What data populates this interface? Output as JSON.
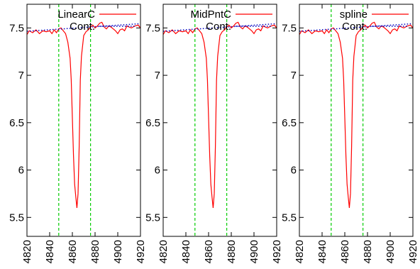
{
  "chart_data": [
    {
      "type": "line",
      "xlim": [
        4820,
        4920
      ],
      "ylim": [
        5.3,
        7.75
      ],
      "xticks": [
        "4820",
        "4840",
        "4860",
        "4880",
        "4900",
        "4920"
      ],
      "yticks": [
        "5.5",
        "6",
        "6.5",
        "7",
        "7.5"
      ],
      "grid": false,
      "legend_position": "top-right",
      "vlines": [
        4848,
        4876
      ],
      "series": [
        {
          "name": "LinearC",
          "color": "#ff0000",
          "style": "solid",
          "x": [
            4820,
            4822,
            4825,
            4828,
            4831,
            4834,
            4837,
            4840,
            4842,
            4844,
            4846,
            4848,
            4850,
            4852,
            4854,
            4856,
            4858,
            4859,
            4860,
            4861,
            4862,
            4863,
            4864,
            4865,
            4866,
            4867,
            4868,
            4870,
            4872,
            4874,
            4876,
            4878,
            4880,
            4882,
            4884,
            4886,
            4888,
            4890,
            4892,
            4894,
            4896,
            4898,
            4900,
            4902,
            4904,
            4906,
            4908,
            4910,
            4912,
            4915,
            4918,
            4920
          ],
          "values": [
            7.43,
            7.47,
            7.45,
            7.48,
            7.44,
            7.47,
            7.46,
            7.47,
            7.44,
            7.48,
            7.45,
            7.49,
            7.5,
            7.47,
            7.44,
            7.35,
            7.18,
            6.95,
            6.55,
            6.15,
            5.85,
            5.72,
            5.6,
            5.75,
            6.25,
            6.95,
            7.2,
            7.42,
            7.46,
            7.48,
            7.51,
            7.53,
            7.5,
            7.52,
            7.55,
            7.56,
            7.51,
            7.49,
            7.52,
            7.51,
            7.49,
            7.47,
            7.44,
            7.48,
            7.49,
            7.47,
            7.52,
            7.51,
            7.5,
            7.52,
            7.53,
            7.5
          ]
        },
        {
          "name": "Cont.",
          "color": "#0000c0",
          "style": "dotted",
          "x": [
            4820,
            4920
          ],
          "values": [
            7.465,
            7.545
          ]
        }
      ]
    },
    {
      "type": "line",
      "xlim": [
        4820,
        4920
      ],
      "ylim": [
        5.3,
        7.75
      ],
      "xticks": [
        "4820",
        "4840",
        "4860",
        "4880",
        "4900",
        "4920"
      ],
      "yticks": [
        "5.5",
        "6",
        "6.5",
        "7",
        "7.5"
      ],
      "grid": false,
      "legend_position": "top-right",
      "vlines": [
        4848,
        4876
      ],
      "series": [
        {
          "name": "MidPntC",
          "color": "#ff0000",
          "style": "solid",
          "x": [
            4820,
            4822,
            4825,
            4828,
            4831,
            4834,
            4837,
            4840,
            4842,
            4844,
            4846,
            4848,
            4850,
            4852,
            4854,
            4856,
            4858,
            4859,
            4860,
            4861,
            4862,
            4863,
            4864,
            4865,
            4866,
            4867,
            4868,
            4870,
            4872,
            4874,
            4876,
            4878,
            4880,
            4882,
            4884,
            4886,
            4888,
            4890,
            4892,
            4894,
            4896,
            4898,
            4900,
            4902,
            4904,
            4906,
            4908,
            4910,
            4912,
            4915,
            4918,
            4920
          ],
          "values": [
            7.43,
            7.47,
            7.45,
            7.48,
            7.44,
            7.47,
            7.46,
            7.47,
            7.44,
            7.48,
            7.45,
            7.49,
            7.5,
            7.47,
            7.44,
            7.35,
            7.18,
            6.95,
            6.55,
            6.15,
            5.85,
            5.72,
            5.6,
            5.75,
            6.25,
            6.95,
            7.2,
            7.42,
            7.46,
            7.48,
            7.51,
            7.53,
            7.5,
            7.52,
            7.55,
            7.56,
            7.51,
            7.49,
            7.52,
            7.51,
            7.49,
            7.47,
            7.44,
            7.48,
            7.49,
            7.47,
            7.52,
            7.51,
            7.5,
            7.52,
            7.53,
            7.5
          ]
        },
        {
          "name": "Cont.",
          "color": "#0000c0",
          "style": "dotted",
          "x": [
            4820,
            4920
          ],
          "values": [
            7.465,
            7.545
          ]
        }
      ]
    },
    {
      "type": "line",
      "xlim": [
        4820,
        4920
      ],
      "ylim": [
        5.3,
        7.75
      ],
      "xticks": [
        "4820",
        "4840",
        "4860",
        "4880",
        "4900",
        "4920"
      ],
      "yticks": [
        "5.5",
        "6",
        "6.5",
        "7",
        "7.5"
      ],
      "grid": false,
      "legend_position": "top-right",
      "vlines": [
        4848,
        4876
      ],
      "series": [
        {
          "name": "spline",
          "color": "#ff0000",
          "style": "solid",
          "x": [
            4820,
            4822,
            4825,
            4828,
            4831,
            4834,
            4837,
            4840,
            4842,
            4844,
            4846,
            4848,
            4850,
            4852,
            4854,
            4856,
            4858,
            4859,
            4860,
            4861,
            4862,
            4863,
            4864,
            4865,
            4866,
            4867,
            4868,
            4870,
            4872,
            4874,
            4876,
            4878,
            4880,
            4882,
            4884,
            4886,
            4888,
            4890,
            4892,
            4894,
            4896,
            4898,
            4900,
            4902,
            4904,
            4906,
            4908,
            4910,
            4912,
            4915,
            4918,
            4920
          ],
          "values": [
            7.43,
            7.47,
            7.45,
            7.48,
            7.44,
            7.47,
            7.46,
            7.47,
            7.44,
            7.48,
            7.45,
            7.49,
            7.5,
            7.47,
            7.44,
            7.35,
            7.18,
            6.95,
            6.55,
            6.15,
            5.85,
            5.72,
            5.6,
            5.75,
            6.25,
            6.95,
            7.2,
            7.42,
            7.46,
            7.48,
            7.51,
            7.53,
            7.5,
            7.52,
            7.55,
            7.56,
            7.51,
            7.49,
            7.52,
            7.51,
            7.49,
            7.47,
            7.44,
            7.48,
            7.49,
            7.47,
            7.52,
            7.51,
            7.5,
            7.52,
            7.53,
            7.5
          ]
        },
        {
          "name": "Cont.",
          "color": "#0000c0",
          "style": "dotted",
          "x": [
            4820,
            4920
          ],
          "values": [
            7.465,
            7.545
          ]
        }
      ]
    }
  ],
  "style": {
    "axis_color": "#000000",
    "vline_color": "#00cc00"
  }
}
